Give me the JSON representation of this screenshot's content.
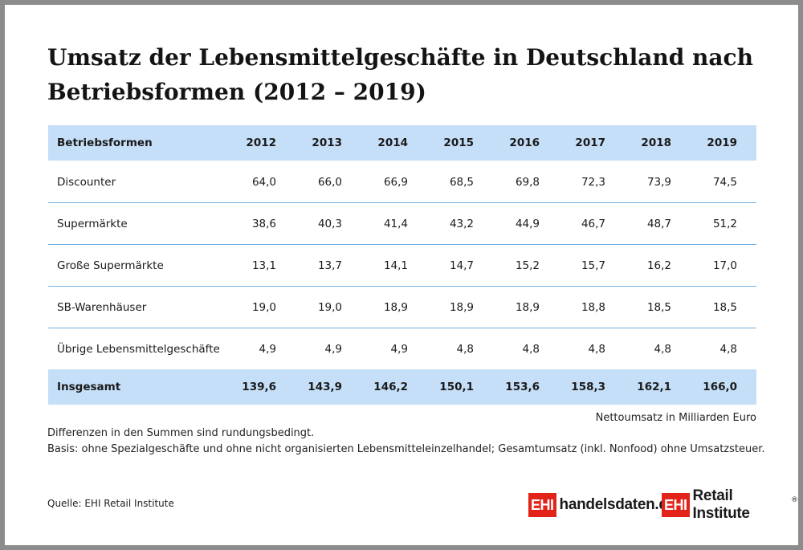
{
  "title": "Umsatz der Lebensmittelgeschäfte in Deutschland nach Betriebsformen (2012 – 2019)",
  "table": {
    "header": [
      "Betriebsformen",
      "2012",
      "2013",
      "2014",
      "2015",
      "2016",
      "2017",
      "2018",
      "2019"
    ],
    "rows": [
      {
        "name": "Discounter",
        "values": [
          "64,0",
          "66,0",
          "66,9",
          "68,5",
          "69,8",
          "72,3",
          "73,9",
          "74,5"
        ]
      },
      {
        "name": "Supermärkte",
        "values": [
          "38,6",
          "40,3",
          "41,4",
          "43,2",
          "44,9",
          "46,7",
          "48,7",
          "51,2"
        ]
      },
      {
        "name": "Große Supermärkte",
        "values": [
          "13,1",
          "13,7",
          "14,1",
          "14,7",
          "15,2",
          "15,7",
          "16,2",
          "17,0"
        ]
      },
      {
        "name": "SB-Warenhäuser",
        "values": [
          "19,0",
          "19,0",
          "18,9",
          "18,9",
          "18,9",
          "18,8",
          "18,5",
          "18,5"
        ]
      },
      {
        "name": "Übrige Lebensmittelgeschäfte",
        "values": [
          "4,9",
          "4,9",
          "4,9",
          "4,8",
          "4,8",
          "4,8",
          "4,8",
          "4,8"
        ]
      }
    ],
    "total": {
      "name": "Insgesamt",
      "values": [
        "139,6",
        "143,9",
        "146,2",
        "150,1",
        "153,6",
        "158,3",
        "162,1",
        "166,0"
      ]
    }
  },
  "unit_note": "Nettoumsatz in Milliarden Euro",
  "notes": [
    "Differenzen in den Summen sind rundungsbedingt.",
    "Basis: ohne Spezialgeschäfte und ohne nicht organisierten Lebensmitteleinzelhandel; Gesamtumsatz (inkl. Nonfood) ohne Umsatzsteuer."
  ],
  "source": "Quelle: EHI Retail Institute",
  "logos": [
    {
      "badge": "EHI",
      "wordmark": "handelsdaten.de",
      "reg": ""
    },
    {
      "badge": "EHI",
      "wordmark": "Retail Institute",
      "reg": "®"
    }
  ],
  "colors": {
    "header_bg": "#c5dff8",
    "row_divider": "#6fb0e2",
    "logo_red": "#e2231a"
  }
}
